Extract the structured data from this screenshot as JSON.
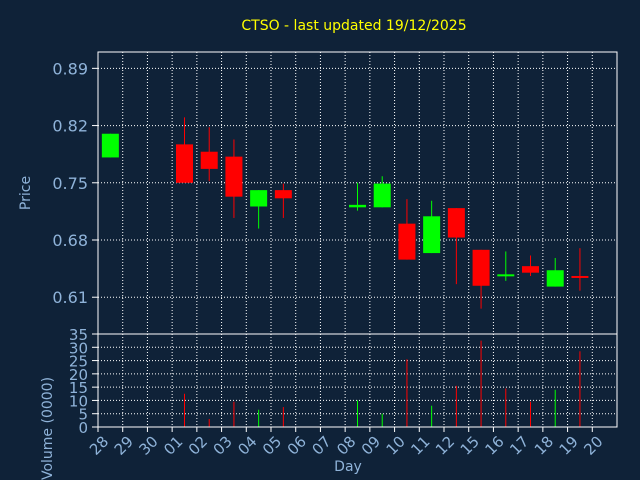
{
  "colors": {
    "background": "#0f2238",
    "title": "#ffff00",
    "axis_text": "#8fb3d9",
    "grid": "#ffffff",
    "up": "#00ff00",
    "down": "#ff0000"
  },
  "chart_data": [
    {
      "type": "candlestick",
      "title": "CTSO - last updated 19/12/2025",
      "ylabel": "Price",
      "ylim": [
        0.565,
        0.91
      ],
      "y_ticks": [
        "0.89",
        "0.82",
        "0.75",
        "0.68",
        "0.61"
      ],
      "grid": true,
      "categories": [
        "28",
        "29",
        "30",
        "01",
        "02",
        "03",
        "04",
        "05",
        "06",
        "07",
        "08",
        "09",
        "10",
        "11",
        "12",
        "15",
        "16",
        "17",
        "18",
        "19",
        "20"
      ],
      "candles": [
        {
          "day": "28",
          "open": 0.781,
          "close": 0.81,
          "high": 0.81,
          "low": 0.781
        },
        {
          "day": "01",
          "open": 0.797,
          "close": 0.75,
          "high": 0.83,
          "low": 0.75
        },
        {
          "day": "02",
          "open": 0.788,
          "close": 0.767,
          "high": 0.818,
          "low": 0.752
        },
        {
          "day": "03",
          "open": 0.782,
          "close": 0.733,
          "high": 0.803,
          "low": 0.707
        },
        {
          "day": "04",
          "open": 0.721,
          "close": 0.741,
          "high": 0.741,
          "low": 0.694
        },
        {
          "day": "05",
          "open": 0.741,
          "close": 0.731,
          "high": 0.749,
          "low": 0.707
        },
        {
          "day": "08",
          "open": 0.72,
          "close": 0.723,
          "high": 0.75,
          "low": 0.716
        },
        {
          "day": "09",
          "open": 0.72,
          "close": 0.749,
          "high": 0.758,
          "low": 0.72
        },
        {
          "day": "10",
          "open": 0.7,
          "close": 0.656,
          "high": 0.73,
          "low": 0.656
        },
        {
          "day": "11",
          "open": 0.664,
          "close": 0.709,
          "high": 0.728,
          "low": 0.664
        },
        {
          "day": "12",
          "open": 0.719,
          "close": 0.683,
          "high": 0.719,
          "low": 0.626
        },
        {
          "day": "15",
          "open": 0.668,
          "close": 0.624,
          "high": 0.668,
          "low": 0.596
        },
        {
          "day": "16",
          "open": 0.638,
          "close": 0.638,
          "high": 0.666,
          "low": 0.63
        },
        {
          "day": "17",
          "open": 0.648,
          "close": 0.64,
          "high": 0.661,
          "low": 0.636
        },
        {
          "day": "18",
          "open": 0.623,
          "close": 0.643,
          "high": 0.658,
          "low": 0.623
        },
        {
          "day": "19",
          "open": 0.636,
          "close": 0.634,
          "high": 0.67,
          "low": 0.618
        }
      ]
    },
    {
      "type": "bar",
      "ylabel": "Volume (0000)",
      "xlabel": "Day",
      "ylim": [
        0,
        35
      ],
      "y_ticks": [
        "35",
        "30",
        "25",
        "20",
        "15",
        "10",
        "5",
        "0"
      ],
      "x_ticks": [
        "28",
        "29",
        "30",
        "01",
        "02",
        "03",
        "04",
        "05",
        "06",
        "07",
        "08",
        "09",
        "10",
        "11",
        "12",
        "15",
        "16",
        "17",
        "18",
        "19",
        "20"
      ],
      "grid": true,
      "volumes": [
        {
          "day": "28",
          "value": 0,
          "dir": "up"
        },
        {
          "day": "01",
          "value": 12.5,
          "dir": "down"
        },
        {
          "day": "02",
          "value": 3,
          "dir": "down"
        },
        {
          "day": "03",
          "value": 9.5,
          "dir": "down"
        },
        {
          "day": "04",
          "value": 6.5,
          "dir": "up"
        },
        {
          "day": "05",
          "value": 7.5,
          "dir": "down"
        },
        {
          "day": "08",
          "value": 10,
          "dir": "up"
        },
        {
          "day": "09",
          "value": 5,
          "dir": "up"
        },
        {
          "day": "10",
          "value": 25.5,
          "dir": "down"
        },
        {
          "day": "11",
          "value": 8,
          "dir": "up"
        },
        {
          "day": "12",
          "value": 15.5,
          "dir": "down"
        },
        {
          "day": "15",
          "value": 32.5,
          "dir": "down"
        },
        {
          "day": "16",
          "value": 14.5,
          "dir": "down"
        },
        {
          "day": "17",
          "value": 9.5,
          "dir": "down"
        },
        {
          "day": "18",
          "value": 14,
          "dir": "up"
        },
        {
          "day": "19",
          "value": 28.5,
          "dir": "down"
        }
      ]
    }
  ]
}
